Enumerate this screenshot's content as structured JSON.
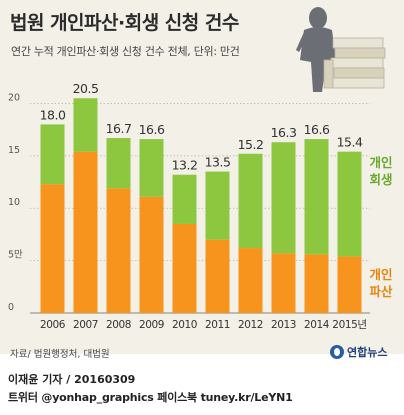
{
  "title": "법원 개인파산·회생 신청 건수",
  "subtitle": "연간 누적 개인파산·회생 신청 건수 전체, 단위: 만건",
  "chart_data": {
    "type": "bar",
    "stacked": true,
    "categories": [
      "2006",
      "2007",
      "2008",
      "2009",
      "2010",
      "2011",
      "2012",
      "2013",
      "2014",
      "2015년"
    ],
    "totals": [
      18.0,
      20.5,
      16.7,
      16.6,
      13.2,
      13.5,
      15.2,
      16.3,
      16.6,
      15.4
    ],
    "total_labels": [
      "18.0",
      "20.5",
      "16.7",
      "16.6",
      "13.2",
      "13.5",
      "15.2",
      "16.3",
      "16.6",
      "15.4"
    ],
    "series": [
      {
        "name": "개인파산",
        "color": "#f7941d",
        "values": [
          12.3,
          15.4,
          11.9,
          11.1,
          8.5,
          7.0,
          6.2,
          5.7,
          5.6,
          5.4
        ]
      },
      {
        "name": "개인회생",
        "color": "#8dc63f",
        "values": [
          5.7,
          5.1,
          4.8,
          5.5,
          4.7,
          6.5,
          9.0,
          10.6,
          11.0,
          10.0
        ]
      }
    ],
    "legend": {
      "rehab": {
        "line1": "개인",
        "line2": "회생"
      },
      "bankrupt": {
        "line1": "개인",
        "line2": "파산"
      }
    },
    "yticks": [
      {
        "value": 0,
        "label": "0"
      },
      {
        "value": 5,
        "label": "5만"
      },
      {
        "value": 10,
        "label": "10"
      },
      {
        "value": 15,
        "label": "15"
      },
      {
        "value": 20,
        "label": "20"
      }
    ],
    "ylim": [
      0,
      21
    ],
    "grid": true
  },
  "source": "자료/ 법원행정처, 대법원",
  "logo_text": "연합뉴스",
  "credit": {
    "line1": "이재윤 기자 / 20160309",
    "line2": "트위터 @yonhap_graphics  페이스북 tuney.kr/LeYN1"
  }
}
